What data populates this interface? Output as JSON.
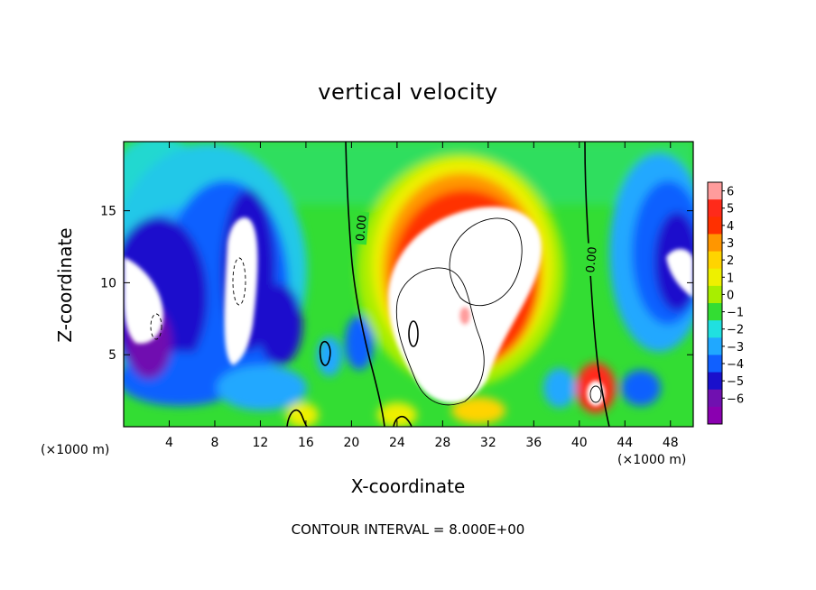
{
  "chart_data": {
    "type": "heatmap",
    "title": "vertical velocity",
    "xlabel": "X-coordinate",
    "ylabel": "Z-coordinate",
    "x_unit_label": "(×1000 m)",
    "xlim": [
      0,
      50
    ],
    "ylim": [
      0,
      19.8
    ],
    "x_ticks": [
      4,
      8,
      12,
      16,
      20,
      24,
      28,
      32,
      36,
      40,
      44,
      48
    ],
    "y_ticks": [
      5,
      10,
      15
    ],
    "colorbar": {
      "levels": [
        6,
        5,
        4,
        3,
        2,
        1,
        0,
        -1,
        -2,
        -3,
        -4,
        -5,
        -6
      ],
      "colors": [
        "#ff9c9c",
        "#ff2a1a",
        "#ff3000",
        "#ff9600",
        "#ffd400",
        "#eef000",
        "#a8ee00",
        "#33dd33",
        "#20e0e0",
        "#20a8ff",
        "#1060ff",
        "#1a10cc",
        "#7010b0",
        "#8a00b0"
      ],
      "above_color": "#ffffff",
      "below_color": "#ffffff"
    },
    "contour_labels": [
      {
        "text": "0.00",
        "x": 20.8,
        "z": 13.8
      },
      {
        "text": "0.00",
        "x": 41.0,
        "z": 11.6
      }
    ],
    "contour_interval_text": "CONTOUR INTERVAL = 8.000E+00"
  }
}
